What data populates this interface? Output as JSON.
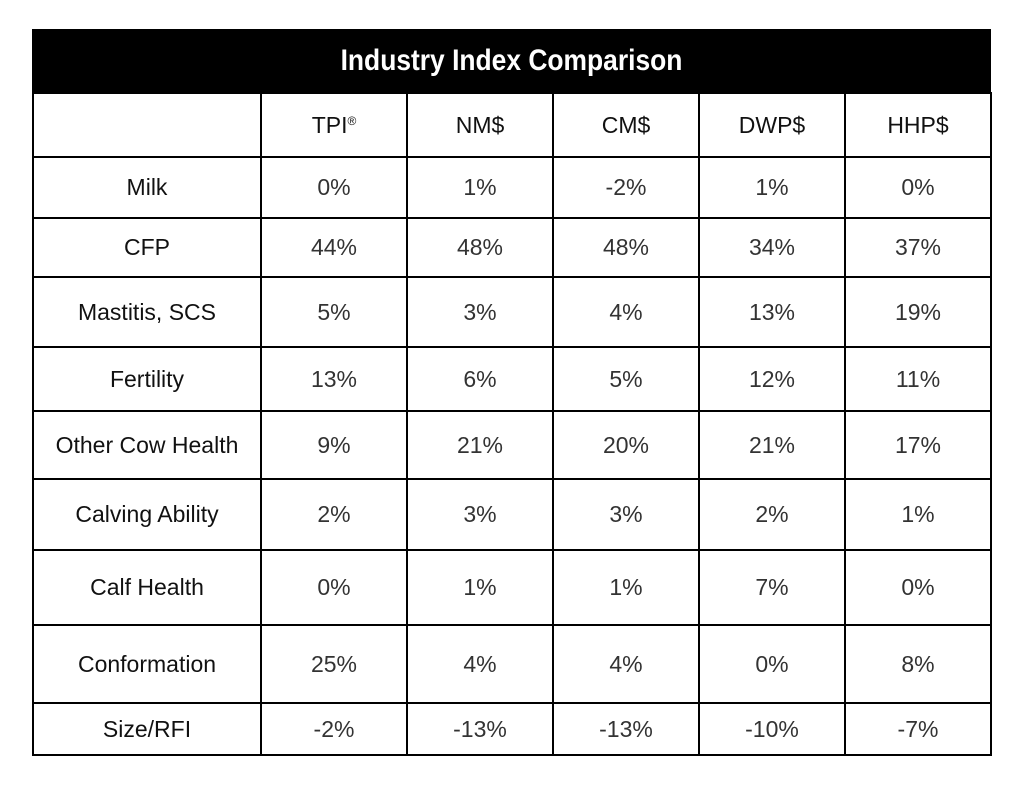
{
  "chart_data": {
    "type": "table",
    "title": "Industry Index Comparison",
    "columns": [
      {
        "name": "TPI",
        "mark": "®"
      },
      {
        "name": "NM$",
        "mark": ""
      },
      {
        "name": "CM$",
        "mark": ""
      },
      {
        "name": "DWP$",
        "mark": ""
      },
      {
        "name": "HHP$",
        "mark": ""
      }
    ],
    "rows": [
      {
        "label": "Milk",
        "values": [
          "0%",
          "1%",
          "-2%",
          "1%",
          "0%"
        ]
      },
      {
        "label": "CFP",
        "values": [
          "44%",
          "48%",
          "48%",
          "34%",
          "37%"
        ]
      },
      {
        "label": "Mastitis, SCS",
        "values": [
          "5%",
          "3%",
          "4%",
          "13%",
          "19%"
        ]
      },
      {
        "label": "Fertility",
        "values": [
          "13%",
          "6%",
          "5%",
          "12%",
          "11%"
        ]
      },
      {
        "label": "Other Cow Health",
        "values": [
          "9%",
          "21%",
          "20%",
          "21%",
          "17%"
        ]
      },
      {
        "label": "Calving Ability",
        "values": [
          "2%",
          "3%",
          "3%",
          "2%",
          "1%"
        ]
      },
      {
        "label": "Calf Health",
        "values": [
          "0%",
          "1%",
          "1%",
          "7%",
          "0%"
        ]
      },
      {
        "label": "Conformation",
        "values": [
          "25%",
          "4%",
          "4%",
          "0%",
          "8%"
        ]
      },
      {
        "label": "Size/RFI",
        "values": [
          "-2%",
          "-13%",
          "-13%",
          "-10%",
          "-7%"
        ]
      }
    ]
  },
  "colors": {
    "title_background": "#000000",
    "title_text": "#ffffff",
    "border": "#000000"
  }
}
